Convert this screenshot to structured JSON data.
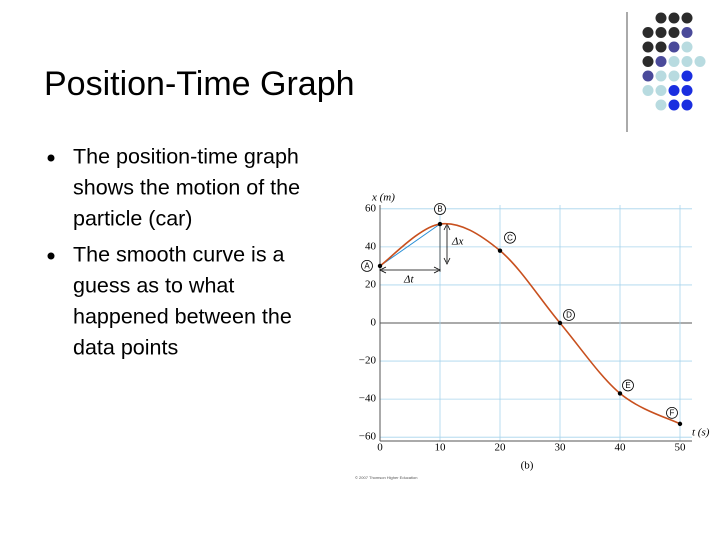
{
  "slide": {
    "title": "Position-Time Graph",
    "bullets": [
      [
        "The position-time graph",
        "shows the motion of the",
        "particle (car)"
      ],
      [
        "The smooth curve is a",
        "guess as to what",
        "happened between the",
        "data points"
      ]
    ]
  },
  "chart_data": {
    "type": "line",
    "x_label": "x (m)",
    "t_label": "t (s)",
    "caption": "(b)",
    "credit": "© 2007 Thomson Higher Education",
    "x": [
      0,
      10,
      20,
      30,
      40,
      50
    ],
    "point_labels": [
      "A",
      "B",
      "C",
      "D",
      "E",
      "F"
    ],
    "series": [
      {
        "name": "position",
        "color": "#c8501e",
        "values": [
          30,
          52,
          38,
          0,
          -37,
          -53
        ]
      }
    ],
    "xlim": [
      0,
      52
    ],
    "ylim": [
      -62,
      62
    ],
    "xticks": [
      0,
      10,
      20,
      30,
      40,
      50
    ],
    "yticks": [
      {
        "value": -60,
        "label": "−60"
      },
      {
        "value": -40,
        "label": "−40"
      },
      {
        "value": -20,
        "label": "−20"
      },
      0,
      20,
      40,
      60
    ],
    "grid": true,
    "annotations": {
      "dx": "Δx",
      "dt": "Δt"
    }
  }
}
